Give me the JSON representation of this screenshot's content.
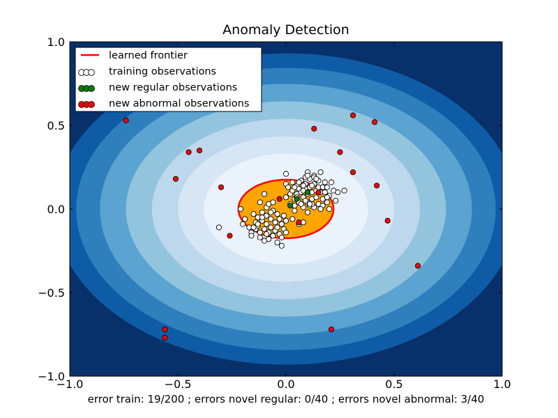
{
  "chart_data": {
    "type": "scatter",
    "title": "Anomaly Detection",
    "xlabel": "error train: 19/200 ; errors novel regular: 0/40 ; errors novel abnormal: 3/40",
    "ylabel": "",
    "xlim": [
      -1.0,
      1.0
    ],
    "ylim": [
      -1.0,
      1.0
    ],
    "x_ticks": [
      -1.0,
      -0.5,
      0.0,
      0.5,
      1.0
    ],
    "x_tick_labels": [
      "−1.0",
      "−0.5",
      "0.0",
      "0.5",
      "1.0"
    ],
    "y_ticks": [
      -1.0,
      -0.5,
      0.0,
      0.5,
      1.0
    ],
    "y_tick_labels": [
      "−1.0",
      "−0.5",
      "0.0",
      "0.5",
      "1.0"
    ],
    "grid": false,
    "legend_position": "upper-left",
    "background": {
      "type": "filled-contour",
      "colormap": "Blues_r",
      "center": [
        0.0,
        0.0
      ],
      "inlier_region": {
        "center": [
          0.0,
          0.0
        ],
        "radius_x": 0.22,
        "radius_y": 0.175,
        "color": "#ffa500"
      }
    },
    "frontier": {
      "name": "learned frontier",
      "color": "#ff0000",
      "center": [
        0.0,
        0.0
      ],
      "radius_x": 0.22,
      "radius_y": 0.175
    },
    "legend": [
      {
        "label": "learned frontier",
        "kind": "line",
        "color": "#ff0000"
      },
      {
        "label": "training observations",
        "kind": "markers",
        "color": "#ffffff"
      },
      {
        "label": "new regular observations",
        "kind": "markers",
        "color": "#008000"
      },
      {
        "label": "new abnormal observations",
        "kind": "markers",
        "color": "#ff0000"
      }
    ],
    "series": [
      {
        "name": "training observations",
        "color": "#ffffff",
        "points": [
          [
            -0.21,
            0.0
          ],
          [
            -0.2,
            -0.09
          ],
          [
            -0.19,
            -0.06
          ],
          [
            -0.17,
            -0.11
          ],
          [
            -0.16,
            -0.14
          ],
          [
            -0.16,
            -0.16
          ],
          [
            -0.15,
            -0.03
          ],
          [
            -0.14,
            -0.08
          ],
          [
            -0.14,
            -0.12
          ],
          [
            -0.13,
            -0.05
          ],
          [
            -0.13,
            -0.1
          ],
          [
            -0.12,
            -0.14
          ],
          [
            -0.12,
            -0.17
          ],
          [
            -0.11,
            -0.02
          ],
          [
            -0.11,
            -0.07
          ],
          [
            -0.1,
            -0.12
          ],
          [
            -0.1,
            -0.19
          ],
          [
            -0.09,
            0.01
          ],
          [
            -0.09,
            -0.04
          ],
          [
            -0.09,
            -0.09
          ],
          [
            -0.08,
            -0.14
          ],
          [
            -0.08,
            -0.18
          ],
          [
            -0.07,
            -0.06
          ],
          [
            -0.07,
            -0.11
          ],
          [
            -0.06,
            -0.01
          ],
          [
            -0.06,
            -0.16
          ],
          [
            -0.05,
            -0.08
          ],
          [
            -0.05,
            -0.13
          ],
          [
            -0.04,
            -0.03
          ],
          [
            -0.04,
            -0.2
          ],
          [
            -0.04,
            -0.11
          ],
          [
            -0.03,
            -0.06
          ],
          [
            -0.03,
            -0.15
          ],
          [
            -0.02,
            -0.09
          ],
          [
            -0.02,
            -0.17
          ],
          [
            -0.01,
            -0.04
          ],
          [
            -0.01,
            -0.12
          ],
          [
            0.0,
            -0.07
          ],
          [
            0.0,
            -0.14
          ],
          [
            -0.1,
            0.09
          ],
          [
            -0.08,
            0.03
          ],
          [
            -0.06,
            0.04
          ],
          [
            -0.11,
            -0.05
          ],
          [
            -0.13,
            -0.09
          ],
          [
            -0.07,
            -0.02
          ],
          [
            -0.12,
            0.04
          ],
          [
            -0.15,
            -0.11
          ],
          [
            -0.09,
            -0.15
          ],
          [
            -0.02,
            -0.22
          ],
          [
            -0.31,
            -0.11
          ],
          [
            0.0,
            0.21
          ],
          [
            0.0,
            0.15
          ],
          [
            0.0,
            0.07
          ],
          [
            0.01,
            0.13
          ],
          [
            0.02,
            0.09
          ],
          [
            0.02,
            0.03
          ],
          [
            0.03,
            0.16
          ],
          [
            0.03,
            0.11
          ],
          [
            0.04,
            0.06
          ],
          [
            0.04,
            0.02
          ],
          [
            0.05,
            0.14
          ],
          [
            0.05,
            0.09
          ],
          [
            0.06,
            0.12
          ],
          [
            0.06,
            0.04
          ],
          [
            0.07,
            0.17
          ],
          [
            0.07,
            0.1
          ],
          [
            0.08,
            0.07
          ],
          [
            0.08,
            0.01
          ],
          [
            0.09,
            0.15
          ],
          [
            0.09,
            0.12
          ],
          [
            0.1,
            0.09
          ],
          [
            0.1,
            0.22
          ],
          [
            0.1,
            0.04
          ],
          [
            0.11,
            0.13
          ],
          [
            0.11,
            0.18
          ],
          [
            0.12,
            0.1
          ],
          [
            0.12,
            0.06
          ],
          [
            0.13,
            0.15
          ],
          [
            0.13,
            0.2
          ],
          [
            0.14,
            0.11
          ],
          [
            0.14,
            0.07
          ],
          [
            0.15,
            0.13
          ],
          [
            0.15,
            0.03
          ],
          [
            0.16,
            0.1
          ],
          [
            0.16,
            0.22
          ],
          [
            0.17,
            0.13
          ],
          [
            0.17,
            0.06
          ],
          [
            0.18,
            0.16
          ],
          [
            0.18,
            0.1
          ],
          [
            0.19,
            0.04
          ],
          [
            0.19,
            0.13
          ],
          [
            0.2,
            0.08
          ],
          [
            0.21,
            0.16
          ],
          [
            0.22,
            0.11
          ],
          [
            0.23,
            0.05
          ],
          [
            0.24,
            0.1
          ],
          [
            0.27,
            0.11
          ],
          [
            0.11,
            0.02
          ],
          [
            0.07,
            0.03
          ],
          [
            0.05,
            0.07
          ],
          [
            0.13,
            0.19
          ],
          [
            0.15,
            0.17
          ],
          [
            0.09,
            0.19
          ],
          [
            0.06,
            0.16
          ],
          [
            0.12,
            0.14
          ],
          [
            0.1,
            0.2
          ],
          [
            0.08,
            0.14
          ],
          [
            0.14,
            0.18
          ],
          [
            0.19,
            0.07
          ],
          [
            0.17,
            0.02
          ],
          [
            0.16,
            0.0
          ],
          [
            0.2,
            0.0
          ],
          [
            0.13,
            0.01
          ],
          [
            0.09,
            0.05
          ],
          [
            0.12,
            0.03
          ],
          [
            0.06,
            -0.09
          ],
          [
            0.08,
            -0.08
          ],
          [
            0.04,
            -0.01
          ],
          [
            0.1,
            -0.02
          ],
          [
            0.03,
            -0.06
          ],
          [
            0.11,
            0.03
          ],
          [
            0.08,
            0.11
          ],
          [
            0.04,
            0.13
          ]
        ]
      },
      {
        "name": "new regular observations",
        "color": "#008000",
        "points": [
          [
            0.05,
            0.06
          ],
          [
            0.02,
            0.02
          ],
          [
            0.1,
            0.1
          ]
        ]
      },
      {
        "name": "new abnormal observations",
        "color": "#ff0000",
        "points": [
          [
            -0.74,
            0.53
          ],
          [
            -0.45,
            0.34
          ],
          [
            -0.4,
            0.35
          ],
          [
            -0.51,
            0.18
          ],
          [
            -0.26,
            -0.16
          ],
          [
            -0.56,
            -0.72
          ],
          [
            -0.56,
            -0.77
          ],
          [
            0.13,
            0.48
          ],
          [
            0.31,
            0.56
          ],
          [
            0.41,
            0.52
          ],
          [
            0.25,
            0.34
          ],
          [
            0.31,
            0.22
          ],
          [
            0.42,
            0.14
          ],
          [
            0.47,
            -0.07
          ],
          [
            0.61,
            -0.34
          ],
          [
            0.21,
            -0.72
          ],
          [
            -0.03,
            0.06
          ],
          [
            0.06,
            -0.08
          ],
          [
            0.15,
            0.1
          ],
          [
            -0.3,
            0.13
          ]
        ]
      }
    ]
  }
}
